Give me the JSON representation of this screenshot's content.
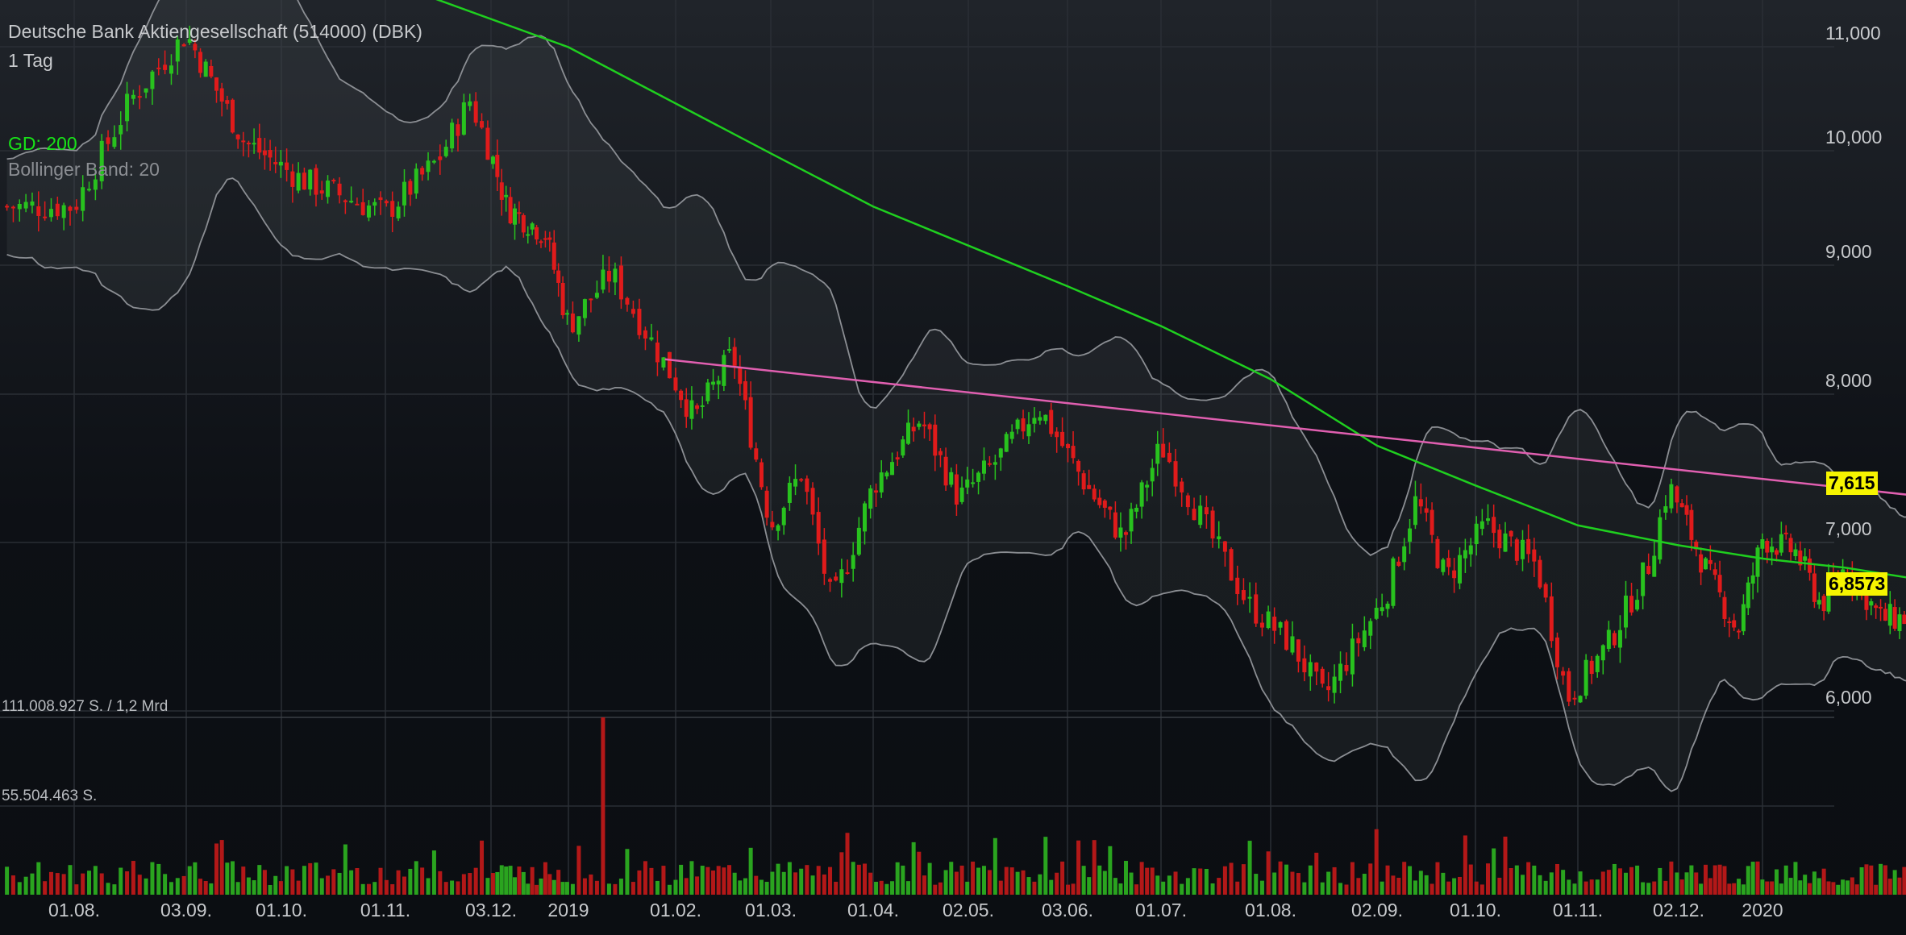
{
  "chart_data": {
    "type": "candlestick",
    "title": "Deutsche Bank Aktiengesellschaft (514000) (DBK)",
    "interval": "1 Tag",
    "indicators": [
      {
        "name": "GD: 200",
        "color": "#18e418"
      },
      {
        "name": "Bollinger Band: 20",
        "color": "#8b8e93"
      }
    ],
    "y_axis": {
      "ticks": [
        "11,000",
        "10,000",
        "9,000",
        "8,000",
        "7,000",
        "6,000"
      ],
      "ylim": [
        5.8,
        11.2
      ]
    },
    "x_axis": {
      "ticks": [
        "01.08.",
        "03.09.",
        "01.10.",
        "01.11.",
        "03.12.",
        "2019",
        "01.02.",
        "01.03.",
        "01.04.",
        "02.05.",
        "03.06.",
        "01.07.",
        "01.08.",
        "02.09.",
        "01.10.",
        "01.11.",
        "02.12.",
        "2020"
      ]
    },
    "last_price": "7,615",
    "sma_value": "6,8573",
    "close_path": [
      {
        "t": 0.0,
        "v": 9.7
      },
      {
        "t": 0.5,
        "v": 10.5
      },
      {
        "t": 1.0,
        "v": 11.0
      },
      {
        "t": 1.6,
        "v": 10.2
      },
      {
        "t": 2.2,
        "v": 9.9
      },
      {
        "t": 3.0,
        "v": 9.65
      },
      {
        "t": 3.5,
        "v": 10.05
      },
      {
        "t": 3.8,
        "v": 10.5
      },
      {
        "t": 4.2,
        "v": 9.7
      },
      {
        "t": 4.7,
        "v": 9.5
      },
      {
        "t": 5.0,
        "v": 8.8
      },
      {
        "t": 5.4,
        "v": 9.2
      },
      {
        "t": 5.8,
        "v": 8.65
      },
      {
        "t": 6.2,
        "v": 8.1
      },
      {
        "t": 6.6,
        "v": 8.6
      },
      {
        "t": 7.0,
        "v": 7.3
      },
      {
        "t": 7.3,
        "v": 7.7
      },
      {
        "t": 7.6,
        "v": 6.7
      },
      {
        "t": 8.0,
        "v": 7.6
      },
      {
        "t": 8.5,
        "v": 8.1
      },
      {
        "t": 8.9,
        "v": 7.5
      },
      {
        "t": 9.3,
        "v": 7.8
      },
      {
        "t": 9.7,
        "v": 8.2
      },
      {
        "t": 10.2,
        "v": 7.6
      },
      {
        "t": 10.6,
        "v": 7.2
      },
      {
        "t": 11.0,
        "v": 7.9
      },
      {
        "t": 11.4,
        "v": 7.3
      },
      {
        "t": 11.8,
        "v": 6.7
      },
      {
        "t": 12.2,
        "v": 6.4
      },
      {
        "t": 12.5,
        "v": 6.0
      },
      {
        "t": 12.8,
        "v": 6.4
      },
      {
        "t": 13.1,
        "v": 6.8
      },
      {
        "t": 13.4,
        "v": 7.5
      },
      {
        "t": 13.7,
        "v": 6.9
      },
      {
        "t": 14.1,
        "v": 7.3
      },
      {
        "t": 14.6,
        "v": 7.0
      },
      {
        "t": 14.9,
        "v": 6.0
      },
      {
        "t": 15.3,
        "v": 6.4
      },
      {
        "t": 15.7,
        "v": 7.0
      },
      {
        "t": 15.9,
        "v": 7.6
      },
      {
        "t": 16.3,
        "v": 7.0
      },
      {
        "t": 16.7,
        "v": 6.5
      },
      {
        "t": 17.0,
        "v": 7.2
      },
      {
        "t": 17.4,
        "v": 7.1
      },
      {
        "t": 17.7,
        "v": 6.7
      },
      {
        "t": 18.0,
        "v": 7.0
      },
      {
        "t": 18.4,
        "v": 6.6
      },
      {
        "t": 18.8,
        "v": 6.6
      },
      {
        "t": 19.2,
        "v": 7.0
      },
      {
        "t": 19.5,
        "v": 7.4
      },
      {
        "t": 19.65,
        "v": 7.6
      }
    ],
    "sma_path": [
      {
        "t": 3.0,
        "v": 11.4
      },
      {
        "t": 5.0,
        "v": 10.9
      },
      {
        "t": 7.0,
        "v": 10.1
      },
      {
        "t": 8.0,
        "v": 9.7
      },
      {
        "t": 10.0,
        "v": 9.1
      },
      {
        "t": 11.0,
        "v": 8.8
      },
      {
        "t": 12.0,
        "v": 8.4
      },
      {
        "t": 13.0,
        "v": 7.9
      },
      {
        "t": 14.0,
        "v": 7.6
      },
      {
        "t": 15.0,
        "v": 7.3
      },
      {
        "t": 16.0,
        "v": 7.15
      },
      {
        "t": 17.0,
        "v": 7.05
      },
      {
        "t": 18.0,
        "v": 6.98
      },
      {
        "t": 19.0,
        "v": 6.88
      },
      {
        "t": 19.65,
        "v": 6.86
      }
    ],
    "trendline": [
      {
        "t": 5.9,
        "v": 8.55
      },
      {
        "t": 19.9,
        "v": 7.45
      }
    ]
  }
}
